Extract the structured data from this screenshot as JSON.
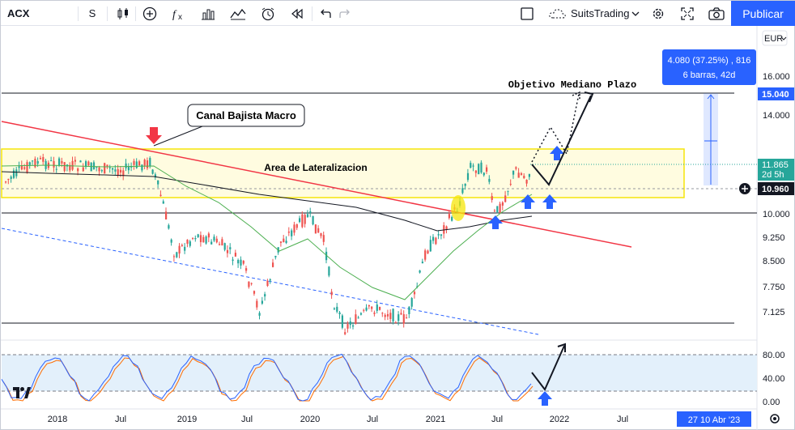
{
  "toolbar": {
    "symbol": "ACX",
    "interval": "S",
    "brand": "SuitsTrading",
    "publish_label": "Publicar"
  },
  "price_axis": {
    "currency": "EUR",
    "ticks": [
      "16.000",
      "14.000",
      "10.000",
      "9.250",
      "8.500",
      "7.750",
      "7.125"
    ],
    "highlight_target": "15.040",
    "last_price": "11.865",
    "countdown": "2d 5h",
    "crosshair_price": "10.960"
  },
  "oscillator_axis": {
    "ticks": [
      "80.00",
      "40.00",
      "0.00"
    ]
  },
  "time_axis": {
    "labels": [
      "2018",
      "Jul",
      "2019",
      "Jul",
      "2020",
      "Jul",
      "2021",
      "Jul",
      "2022",
      "Jul"
    ],
    "cursor_date": "27 10 Abr '23"
  },
  "measure_box": {
    "line1": "4.080 (37.25%) , 816",
    "line2": "6 barras, 42d"
  },
  "annotations": {
    "canal_callout": "Canal Bajista Macro",
    "range_label": "Area de Lateralizacion",
    "objective_label": "Objetivo Mediano Plazo"
  },
  "colors": {
    "accent": "#2962ff",
    "trendline": "#f23645",
    "range_box": "#f5e50a",
    "ma_green": "#4caf50",
    "ma_black": "#131722",
    "stoch_blue": "#2962ff",
    "stoch_orange": "#ff6d00",
    "bull": "#26a69a",
    "bear": "#ef5350"
  }
}
